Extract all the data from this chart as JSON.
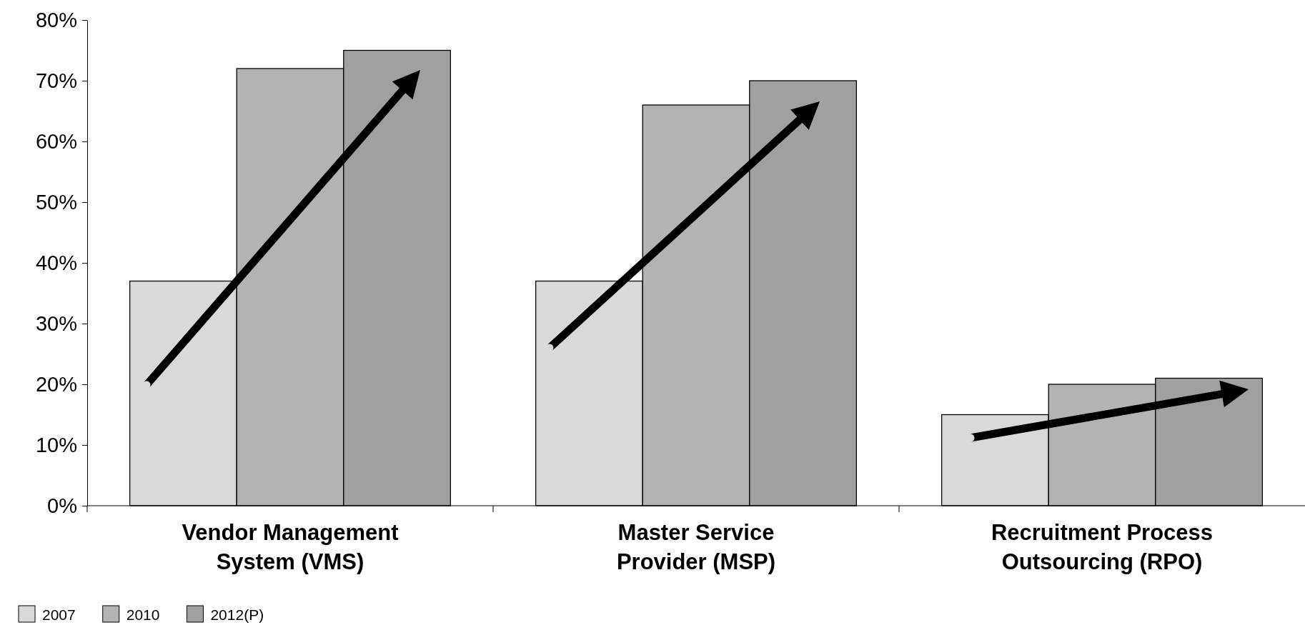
{
  "chart_data": {
    "type": "bar",
    "categories": [
      "Vendor Management System (VMS)",
      "Master Service Provider (MSP)",
      "Recruitment Process Outsourcing (RPO)"
    ],
    "series": [
      {
        "name": "2007",
        "color": "#d9d9d9",
        "values": [
          37,
          37,
          15
        ]
      },
      {
        "name": "2010",
        "color": "#b3b3b3",
        "values": [
          72,
          66,
          20
        ]
      },
      {
        "name": "2012(P)",
        "color": "#a0a0a0",
        "values": [
          75,
          70,
          21
        ]
      }
    ],
    "ylim": [
      0,
      80
    ],
    "yticks": [
      {
        "value": 0,
        "label": "0%"
      },
      {
        "value": 10,
        "label": "10%"
      },
      {
        "value": 20,
        "label": "20%"
      },
      {
        "value": 30,
        "label": "30%"
      },
      {
        "value": 40,
        "label": "40%"
      },
      {
        "value": 50,
        "label": "50%"
      },
      {
        "value": 60,
        "label": "60%"
      },
      {
        "value": 70,
        "label": "70%"
      },
      {
        "value": 80,
        "label": "80%"
      }
    ],
    "grid": false,
    "legend": "bottom left"
  }
}
